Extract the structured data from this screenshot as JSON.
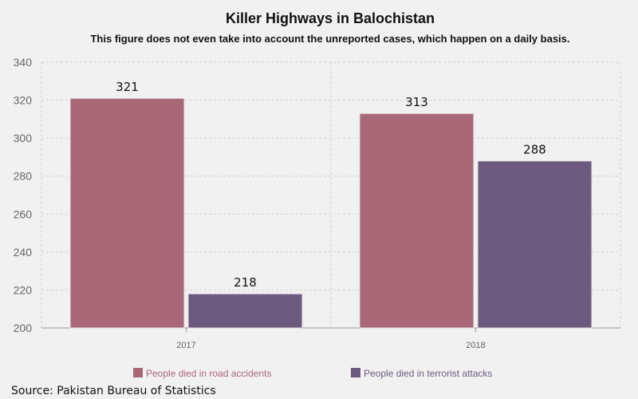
{
  "chart_data": {
    "type": "bar",
    "title": "Killer Highways in Balochistan",
    "subtitle": "This figure does not even take into account the unreported cases, which happen on a daily basis.",
    "categories": [
      "2017",
      "2018"
    ],
    "series": [
      {
        "name": "People died in road accidents",
        "values": [
          321,
          313
        ],
        "color": "#a86878"
      },
      {
        "name": "People died in terrorist attacks",
        "values": [
          218,
          288
        ],
        "color": "#6b5a7e"
      }
    ],
    "ylim": [
      200,
      340
    ],
    "yticks": [
      200,
      220,
      240,
      260,
      280,
      300,
      320,
      340
    ],
    "grid": true,
    "legend_position": "bottom",
    "xlabel": "",
    "ylabel": ""
  },
  "source_text": "Source: Pakistan Bureau of Statistics"
}
